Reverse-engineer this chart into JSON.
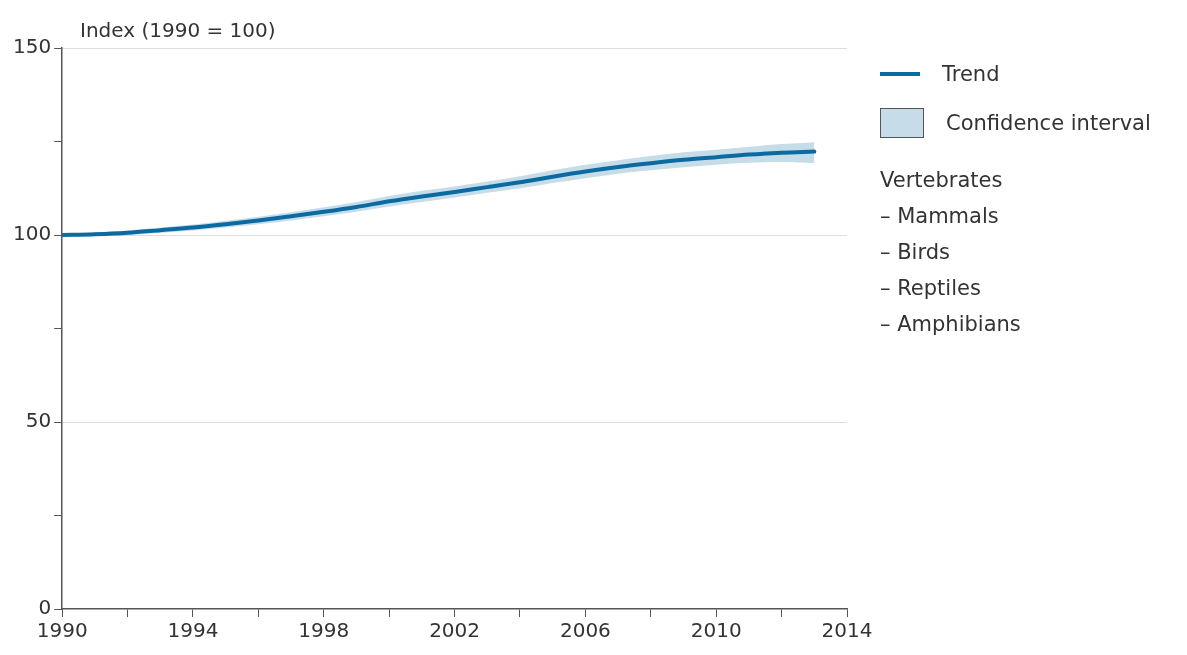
{
  "chart_data": {
    "type": "line",
    "ylabel": "Index (1990 = 100)",
    "x": [
      1990,
      1991,
      1992,
      1993,
      1994,
      1995,
      1996,
      1997,
      1998,
      1999,
      2000,
      2001,
      2002,
      2003,
      2004,
      2005,
      2006,
      2007,
      2008,
      2009,
      2010,
      2011,
      2012,
      2013
    ],
    "series": [
      {
        "name": "Trend",
        "color": "#0a6aa1",
        "values": [
          100,
          100.2,
          100.6,
          101.3,
          102,
          102.9,
          103.9,
          105,
          106.2,
          107.5,
          109,
          110.3,
          111.5,
          112.8,
          114.1,
          115.6,
          117,
          118.2,
          119.2,
          120.1,
          120.8,
          121.5,
          122,
          122.3
        ],
        "lower": [
          99.6,
          99.7,
          100,
          100.6,
          101.2,
          102,
          102.9,
          103.9,
          105,
          106.2,
          107.6,
          108.8,
          110,
          111.3,
          112.5,
          113.9,
          115.2,
          116.4,
          117.3,
          118.1,
          118.8,
          119.3,
          119.5,
          119.2
        ],
        "upper": [
          100.4,
          100.7,
          101.2,
          102,
          102.8,
          103.8,
          104.9,
          106.1,
          107.4,
          108.8,
          110.4,
          111.8,
          113,
          114.3,
          115.7,
          117.3,
          118.8,
          120,
          121.1,
          122.1,
          122.8,
          123.6,
          124.3,
          124.8
        ]
      }
    ],
    "xlim": [
      1990,
      2014
    ],
    "xticks": [
      1990,
      {
        "value": 1992,
        "label": null
      },
      1994,
      {
        "value": 1996,
        "label": null
      },
      1998,
      {
        "value": 2000,
        "label": null
      },
      2002,
      {
        "value": 2004,
        "label": null
      },
      2006,
      {
        "value": 2008,
        "label": null
      },
      2010,
      {
        "value": 2012,
        "label": null
      },
      2014
    ],
    "ylim": [
      0,
      150
    ],
    "yticks": [
      0,
      {
        "value": 25,
        "label": null
      },
      50,
      {
        "value": 75,
        "label": null
      },
      100,
      {
        "value": 125,
        "label": null
      },
      150
    ],
    "grid": "y",
    "legend": "top right",
    "marker": "none",
    "line_style": "solid",
    "annotations": [
      "Confidence interval",
      "Vertebrates",
      "– Mammals",
      "– Birds",
      "– Reptiles",
      "– Amphibians"
    ]
  }
}
